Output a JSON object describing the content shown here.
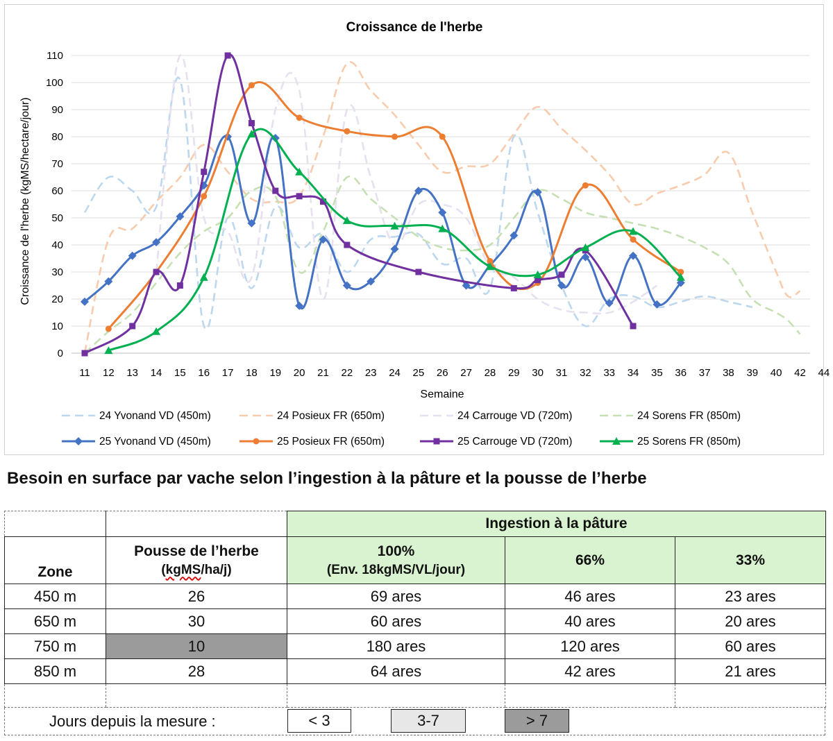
{
  "chart_data": {
    "type": "line",
    "title": "Croissance de l'herbe",
    "xlabel": "Semaine",
    "ylabel": "Croissance de l'herbe (kgMS/hectare/jour)",
    "x_ticks": [
      "11",
      "12",
      "13",
      "14",
      "15",
      "16",
      "17",
      "18",
      "19",
      "20",
      "21",
      "22",
      "23",
      "24",
      "25",
      "26",
      "27",
      "28",
      "29",
      "30",
      "31",
      "32",
      "33",
      "34",
      "35",
      "36",
      "37",
      "38",
      "39",
      "40",
      "42",
      "44"
    ],
    "y_ticks": [
      "0",
      "10",
      "20",
      "30",
      "40",
      "50",
      "60",
      "70",
      "80",
      "90",
      "100",
      "110"
    ],
    "ylim": [
      0,
      110
    ],
    "grid": "horizontal",
    "legend_position": "bottom",
    "series": [
      {
        "name": "24 Yvonand VD (450m)",
        "style": "dashed",
        "color": "#bdd7ee",
        "marker": "none",
        "points": [
          [
            11,
            52
          ],
          [
            12,
            65
          ],
          [
            13,
            60
          ],
          [
            14,
            54
          ],
          [
            15,
            101
          ],
          [
            16,
            10
          ],
          [
            17,
            50
          ],
          [
            18,
            24
          ],
          [
            19,
            54
          ],
          [
            20,
            39
          ],
          [
            21,
            44
          ],
          [
            22,
            30
          ],
          [
            23,
            42
          ],
          [
            24,
            43
          ],
          [
            25,
            44
          ],
          [
            26,
            33
          ],
          [
            27,
            35
          ],
          [
            28,
            24
          ],
          [
            29,
            80
          ],
          [
            30,
            52
          ],
          [
            31,
            25
          ],
          [
            32,
            10
          ],
          [
            33,
            20
          ],
          [
            34,
            21
          ],
          [
            35,
            17
          ],
          [
            36,
            19
          ],
          [
            37,
            21
          ],
          [
            38,
            19
          ],
          [
            39,
            17
          ]
        ]
      },
      {
        "name": "24 Posieux FR (650m)",
        "style": "dashed",
        "color": "#f8cbad",
        "marker": "none",
        "points": [
          [
            11,
            0
          ],
          [
            12,
            42
          ],
          [
            13,
            46
          ],
          [
            14,
            56
          ],
          [
            15,
            65
          ],
          [
            16,
            77
          ],
          [
            17,
            67
          ],
          [
            18,
            57
          ],
          [
            19,
            56
          ],
          [
            20,
            58
          ],
          [
            21,
            80
          ],
          [
            22,
            107
          ],
          [
            23,
            97
          ],
          [
            24,
            88
          ],
          [
            25,
            77
          ],
          [
            26,
            67
          ],
          [
            27,
            69
          ],
          [
            28,
            70
          ],
          [
            29,
            81
          ],
          [
            30,
            91
          ],
          [
            31,
            83
          ],
          [
            32,
            75
          ],
          [
            33,
            66
          ],
          [
            34,
            55
          ],
          [
            35,
            59
          ],
          [
            36,
            62
          ],
          [
            37,
            66
          ],
          [
            38,
            74
          ],
          [
            39,
            52
          ],
          [
            40,
            30
          ],
          [
            41,
            21
          ],
          [
            42,
            23
          ]
        ]
      },
      {
        "name": "24 Carrouge VD (720m)",
        "style": "dashed",
        "color": "#e6e0ef",
        "marker": "none",
        "points": [
          [
            14,
            30
          ],
          [
            15,
            110
          ],
          [
            16,
            50
          ],
          [
            17,
            45
          ],
          [
            18,
            28
          ],
          [
            19,
            90
          ],
          [
            20,
            97
          ],
          [
            21,
            20
          ],
          [
            22,
            90
          ],
          [
            23,
            65
          ],
          [
            24,
            40
          ],
          [
            25,
            55
          ],
          [
            26,
            55
          ],
          [
            27,
            50
          ],
          [
            28,
            32
          ],
          [
            29,
            28
          ],
          [
            30,
            20
          ],
          [
            31,
            16
          ],
          [
            32,
            15
          ],
          [
            33,
            15
          ],
          [
            34,
            19
          ],
          [
            35,
            25
          ]
        ]
      },
      {
        "name": "24 Sorens FR (850m)",
        "style": "dashed",
        "color": "#c6e0b4",
        "marker": "none",
        "points": [
          [
            11,
            0
          ],
          [
            12,
            8
          ],
          [
            13,
            15
          ],
          [
            14,
            26
          ],
          [
            15,
            37
          ],
          [
            16,
            45
          ],
          [
            17,
            50
          ],
          [
            18,
            60
          ],
          [
            19,
            58
          ],
          [
            20,
            30
          ],
          [
            21,
            45
          ],
          [
            22,
            65
          ],
          [
            23,
            57
          ],
          [
            24,
            50
          ],
          [
            25,
            43
          ],
          [
            26,
            39
          ],
          [
            27,
            38
          ],
          [
            28,
            40
          ],
          [
            29,
            50
          ],
          [
            30,
            60
          ],
          [
            31,
            57
          ],
          [
            32,
            52
          ],
          [
            33,
            50
          ],
          [
            34,
            48
          ],
          [
            35,
            46
          ],
          [
            36,
            43
          ],
          [
            37,
            39
          ],
          [
            38,
            33
          ],
          [
            39,
            20
          ],
          [
            40,
            15
          ],
          [
            41,
            12
          ],
          [
            42,
            7
          ]
        ]
      },
      {
        "name": "25 Yvonand VD (450m)",
        "style": "solid",
        "color": "#4472c4",
        "marker": "diamond",
        "points": [
          [
            11,
            19
          ],
          [
            12,
            26.5
          ],
          [
            13,
            36
          ],
          [
            14,
            41
          ],
          [
            15,
            50.5
          ],
          [
            16,
            62
          ],
          [
            17,
            80
          ],
          [
            18,
            48
          ],
          [
            19,
            79.5
          ],
          [
            20,
            17.5
          ],
          [
            21,
            42
          ],
          [
            22,
            25
          ],
          [
            23,
            26.5
          ],
          [
            24,
            38.5
          ],
          [
            25,
            60
          ],
          [
            26,
            52
          ],
          [
            27,
            25
          ],
          [
            28,
            32.5
          ],
          [
            29,
            43.5
          ],
          [
            30,
            59.5
          ],
          [
            31,
            25
          ],
          [
            32,
            35.5
          ],
          [
            33,
            18.5
          ],
          [
            34,
            36
          ],
          [
            35,
            18
          ],
          [
            36,
            26
          ]
        ]
      },
      {
        "name": "25 Posieux FR (650m)",
        "style": "solid",
        "color": "#ed7d31",
        "marker": "circle",
        "points": [
          [
            12,
            9
          ],
          [
            14,
            30
          ],
          [
            16,
            58
          ],
          [
            18,
            99
          ],
          [
            20,
            87
          ],
          [
            22,
            82
          ],
          [
            24,
            80
          ],
          [
            26,
            80
          ],
          [
            28,
            34
          ],
          [
            30,
            26
          ],
          [
            32,
            62
          ],
          [
            34,
            42
          ],
          [
            36,
            30
          ]
        ]
      },
      {
        "name": "25 Carrouge VD (720m)",
        "style": "solid",
        "color": "#7030a0",
        "marker": "square",
        "points": [
          [
            11,
            0
          ],
          [
            13,
            10
          ],
          [
            14,
            30
          ],
          [
            15,
            25
          ],
          [
            16,
            67
          ],
          [
            17,
            110
          ],
          [
            18,
            85
          ],
          [
            19,
            60
          ],
          [
            20,
            58
          ],
          [
            21,
            56
          ],
          [
            22,
            40
          ],
          [
            25,
            30
          ],
          [
            29,
            24
          ],
          [
            30,
            27
          ],
          [
            31,
            29
          ],
          [
            32,
            38
          ],
          [
            34,
            10
          ]
        ]
      },
      {
        "name": "25 Sorens FR (850m)",
        "style": "solid",
        "color": "#00b050",
        "marker": "triangle",
        "points": [
          [
            12,
            1
          ],
          [
            14,
            8
          ],
          [
            16,
            28
          ],
          [
            18,
            81
          ],
          [
            20,
            67
          ],
          [
            22,
            49
          ],
          [
            24,
            47
          ],
          [
            26,
            46
          ],
          [
            28,
            32
          ],
          [
            30,
            29
          ],
          [
            32,
            39
          ],
          [
            34,
            45
          ],
          [
            36,
            28
          ]
        ]
      }
    ]
  },
  "section_title": "Besoin en surface par vache selon l’ingestion à la pâture et la pousse de l’herbe",
  "table": {
    "group_header": "Ingestion à la pâture",
    "zone_header": "Zone",
    "pousse_header": "Pousse de l’herbe",
    "pousse_unit_prefix": "(",
    "pousse_unit_word": "kgMS",
    "pousse_unit_suffix": "/ha/j)",
    "col_100": "100%",
    "col_100_sub": "(Env. 18kgMS/VL/jour)",
    "col_66": "66%",
    "col_33": "33%",
    "rows": [
      {
        "zone": "450 m",
        "pousse": "26",
        "c100": "69 ares",
        "c66": "46 ares",
        "c33": "23 ares",
        "age": "<3"
      },
      {
        "zone": "650 m",
        "pousse": "30",
        "c100": "60 ares",
        "c66": "40 ares",
        "c33": "20 ares",
        "age": "<3"
      },
      {
        "zone": "750 m",
        "pousse": "10",
        "c100": "180 ares",
        "c66": "120 ares",
        "c33": "60 ares",
        "age": ">7"
      },
      {
        "zone": "850 m",
        "pousse": "28",
        "c100": "64 ares",
        "c66": "42 ares",
        "c33": "21 ares",
        "age": "<3"
      }
    ]
  },
  "legend": {
    "label": "Jours depuis la mesure :",
    "items": [
      {
        "label": "< 3",
        "color": "#ffffff"
      },
      {
        "label": "3-7",
        "color": "#e7e7e7"
      },
      {
        "label": "> 7",
        "color": "#9b9b9b"
      }
    ]
  }
}
